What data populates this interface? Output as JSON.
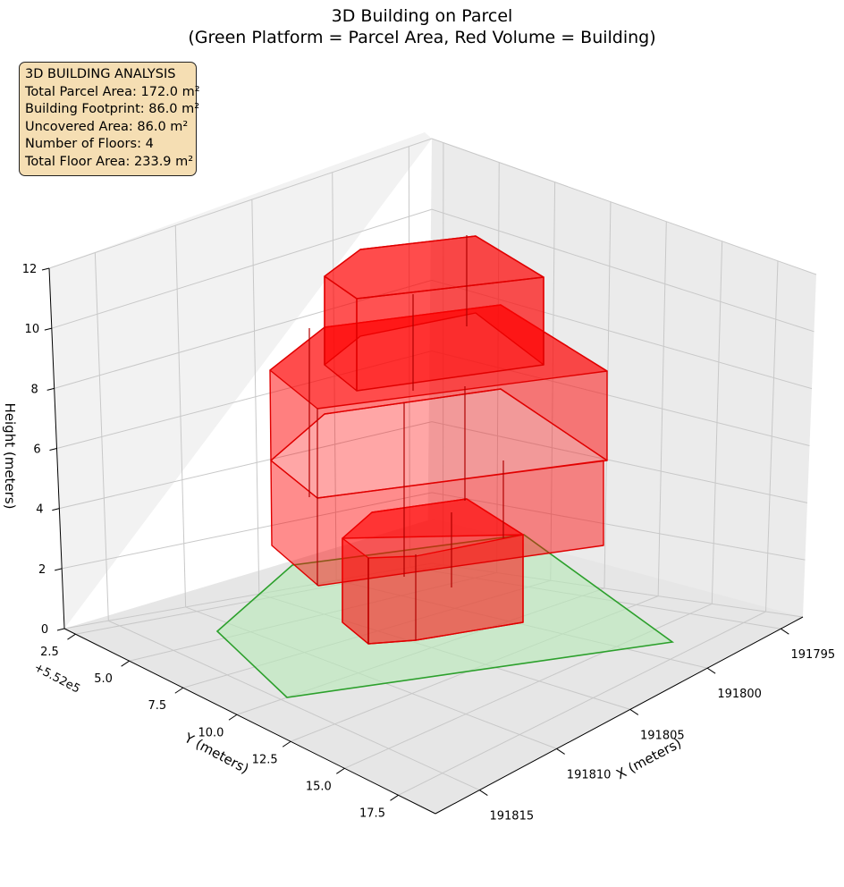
{
  "title": "3D Building on Parcel",
  "subtitle": "(Green Platform = Parcel Area, Red Volume = Building)",
  "info_box": {
    "heading": "3D BUILDING ANALYSIS",
    "lines": [
      "Total Parcel Area: 172.0 m²",
      "Building Footprint: 86.0 m²",
      "Uncovered Area: 86.0 m²",
      "Number of Floors: 4",
      "Total Floor Area: 233.9 m²"
    ]
  },
  "chart_data": {
    "type": "3d-volume",
    "title": "3D Building on Parcel",
    "subtitle": "(Green Platform = Parcel Area, Red Volume = Building)",
    "xlabel": "X (meters)",
    "ylabel": "Y (meters)",
    "zlabel": "Height (meters)",
    "y_offset_label": "+5.52e5",
    "x_ticks": [
      "191795",
      "191800",
      "191805",
      "191810",
      "191815"
    ],
    "y_ticks": [
      "2.5",
      "5.0",
      "7.5",
      "10.0",
      "12.5",
      "15.0",
      "17.5"
    ],
    "z_ticks": [
      "0",
      "2",
      "4",
      "6",
      "8",
      "10",
      "12"
    ],
    "zlim": [
      0,
      12
    ],
    "grid": true,
    "view": {
      "elevation_deg": 20,
      "azimuth_deg": 45
    },
    "parcel_area_m2": 172.0,
    "building_footprint_m2": 86.0,
    "uncovered_area_m2": 86.0,
    "floors": 4,
    "total_floor_area_m2": 233.9,
    "colors": {
      "parcel_face": "#b8eab8",
      "parcel_edge": "#2ca02c",
      "building_face": "#ff0000",
      "building_edge": "#e00000",
      "info_box_bg": "#f5deb3"
    }
  }
}
